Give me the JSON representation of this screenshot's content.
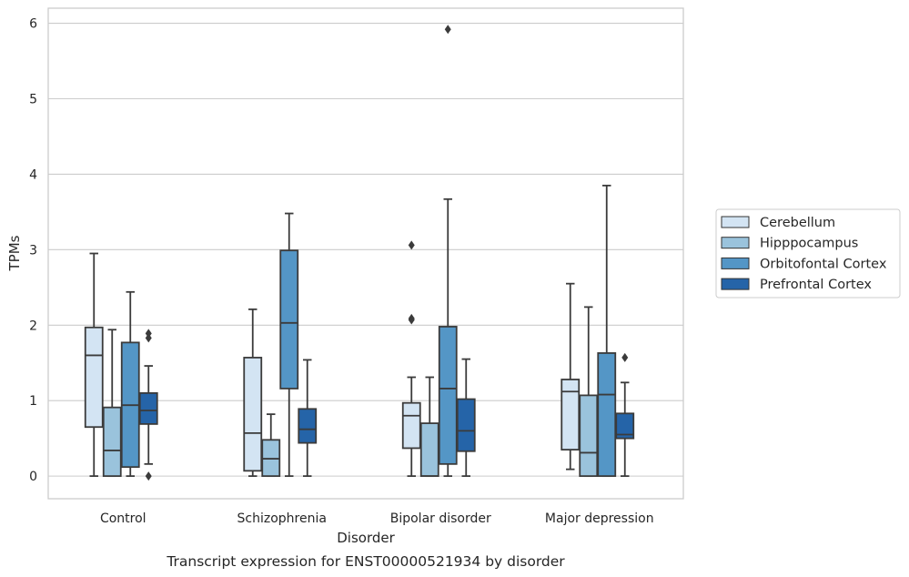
{
  "chart_data": {
    "type": "box",
    "title": "",
    "caption": "Transcript expression for ENST00000521934 by disorder",
    "xlabel": "Disorder",
    "ylabel": "TPMs",
    "ylim": [
      -0.3,
      6.2
    ],
    "yticks": [
      "0",
      "1",
      "2",
      "3",
      "4",
      "5",
      "6"
    ],
    "grid": "horizontal",
    "legend_position": "right",
    "categories": [
      "Control",
      "Schizophrenia",
      "Bipolar disorder",
      "Major depression"
    ],
    "series": [
      {
        "name": "Cerebellum",
        "color": "#d3e4f3",
        "boxes": [
          {
            "whisker_low": 0.0,
            "q1": 0.65,
            "median": 1.6,
            "q3": 1.97,
            "whisker_high": 2.95,
            "outliers": []
          },
          {
            "whisker_low": 0.0,
            "q1": 0.07,
            "median": 0.57,
            "q3": 1.57,
            "whisker_high": 2.21,
            "outliers": []
          },
          {
            "whisker_low": 0.0,
            "q1": 0.37,
            "median": 0.8,
            "q3": 0.97,
            "whisker_high": 1.31,
            "outliers": [
              2.07,
              2.09,
              3.06
            ]
          },
          {
            "whisker_low": 0.09,
            "q1": 0.35,
            "median": 1.12,
            "q3": 1.28,
            "whisker_high": 2.55,
            "outliers": []
          }
        ]
      },
      {
        "name": "Hipppocampus",
        "color": "#9ac3dc",
        "boxes": [
          {
            "whisker_low": 0.0,
            "q1": 0.0,
            "median": 0.34,
            "q3": 0.91,
            "whisker_high": 1.94,
            "outliers": []
          },
          {
            "whisker_low": 0.0,
            "q1": 0.0,
            "median": 0.23,
            "q3": 0.48,
            "whisker_high": 0.82,
            "outliers": []
          },
          {
            "whisker_low": 0.0,
            "q1": 0.0,
            "median": 0.0,
            "q3": 0.7,
            "whisker_high": 1.31,
            "outliers": []
          },
          {
            "whisker_low": 0.0,
            "q1": 0.0,
            "median": 0.31,
            "q3": 1.07,
            "whisker_high": 2.24,
            "outliers": []
          }
        ]
      },
      {
        "name": "Orbitofontal Cortex",
        "color": "#5496c6",
        "boxes": [
          {
            "whisker_low": 0.0,
            "q1": 0.12,
            "median": 0.94,
            "q3": 1.77,
            "whisker_high": 2.44,
            "outliers": []
          },
          {
            "whisker_low": 0.0,
            "q1": 1.16,
            "median": 2.03,
            "q3": 2.99,
            "whisker_high": 3.48,
            "outliers": []
          },
          {
            "whisker_low": 0.0,
            "q1": 0.16,
            "median": 1.16,
            "q3": 1.98,
            "whisker_high": 3.67,
            "outliers": [
              5.92
            ]
          },
          {
            "whisker_low": 0.0,
            "q1": 0.0,
            "median": 1.08,
            "q3": 1.63,
            "whisker_high": 3.85,
            "outliers": []
          }
        ]
      },
      {
        "name": "Prefrontal Cortex",
        "color": "#2564a8",
        "boxes": [
          {
            "whisker_low": 0.16,
            "q1": 0.69,
            "median": 0.87,
            "q3": 1.1,
            "whisker_high": 1.46,
            "outliers": [
              0.0,
              1.83,
              1.89
            ]
          },
          {
            "whisker_low": 0.0,
            "q1": 0.44,
            "median": 0.62,
            "q3": 0.89,
            "whisker_high": 1.54,
            "outliers": []
          },
          {
            "whisker_low": 0.0,
            "q1": 0.33,
            "median": 0.6,
            "q3": 1.02,
            "whisker_high": 1.55,
            "outliers": []
          },
          {
            "whisker_low": 0.0,
            "q1": 0.5,
            "median": 0.55,
            "q3": 0.83,
            "whisker_high": 1.24,
            "outliers": [
              1.57
            ]
          }
        ]
      }
    ]
  }
}
